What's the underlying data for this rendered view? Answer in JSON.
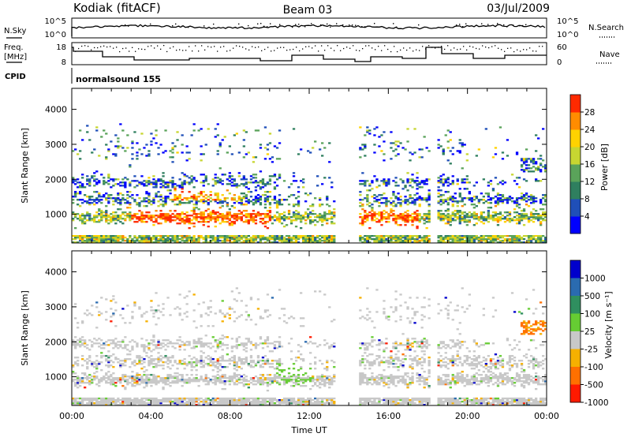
{
  "header": {
    "station": "Kodiak (fitACF)",
    "beam": "Beam 03",
    "date": "03/Jul/2009"
  },
  "strips": {
    "nsky_label": "N.Sky",
    "nsearch_label": "N.Search",
    "freq_label_1": "Freq.",
    "freq_label_2": "[MHz]",
    "nave_label": "Nave",
    "cpid_label": "CPID",
    "cpid_value": "normalsound 155",
    "noise_left_ticks": [
      "10^5",
      "10^0"
    ],
    "noise_right_ticks": [
      "10^5",
      "10^0"
    ],
    "freq_ticks": [
      "18",
      "8"
    ],
    "nave_ticks": [
      "60",
      "0"
    ]
  },
  "chart_data": [
    {
      "type": "heatmap",
      "name": "power-panel",
      "ylabel": "Slant Range [km]",
      "xlim": [
        0,
        24
      ],
      "ylim": [
        180,
        4600
      ],
      "yticks": [
        "1000",
        "2000",
        "3000",
        "4000"
      ],
      "colorbar": {
        "label": "Power [dB]",
        "ticks": [
          "4",
          "8",
          "12",
          "16",
          "20",
          "24",
          "28"
        ],
        "colors": [
          "#0000ff",
          "#1f4fb8",
          "#2f7f5f",
          "#5aa35a",
          "#c7d631",
          "#ffd200",
          "#ff8c00",
          "#ff2a00"
        ]
      }
    },
    {
      "type": "heatmap",
      "name": "velocity-panel",
      "ylabel": "Slant Range [km]",
      "xlabel": "Time UT",
      "xlim": [
        0,
        24
      ],
      "ylim": [
        180,
        4600
      ],
      "yticks": [
        "1000",
        "2000",
        "3000",
        "4000"
      ],
      "xticks": [
        "00:00",
        "04:00",
        "08:00",
        "12:00",
        "16:00",
        "20:00",
        "00:00"
      ],
      "colorbar": {
        "label": "Velocity [m s⁻¹]",
        "ticks": [
          "1000",
          "500",
          "100",
          "25",
          "-25",
          "-100",
          "-500",
          "-1000"
        ],
        "colors": [
          "#0000cc",
          "#2a6bb0",
          "#2f8f5f",
          "#66cc33",
          "#c8c8c8",
          "#f6b000",
          "#ff7000",
          "#ff1a00"
        ]
      }
    }
  ]
}
